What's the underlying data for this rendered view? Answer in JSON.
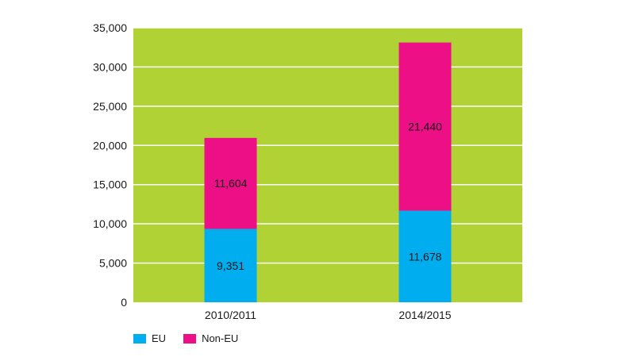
{
  "chart_data": {
    "type": "bar",
    "stacked": true,
    "categories": [
      "2010/2011",
      "2014/2015"
    ],
    "series": [
      {
        "name": "EU",
        "values": [
          9351,
          11678
        ],
        "labels": [
          "9,351",
          "11,678"
        ],
        "color": "#00aeef"
      },
      {
        "name": "Non-EU",
        "values": [
          11604,
          21440
        ],
        "labels": [
          "11,604",
          "21,440"
        ],
        "color": "#ec0f86"
      }
    ],
    "y_ticks": [
      0,
      5000,
      10000,
      15000,
      20000,
      25000,
      30000,
      35000
    ],
    "y_tick_labels": [
      "0",
      "5,000",
      "10,000",
      "15,000",
      "20,000",
      "25,000",
      "30,000",
      "35,000"
    ],
    "ylim": [
      0,
      35000
    ],
    "grid": true,
    "plot_background": "#b0d235",
    "gridline_color": "#ffffff",
    "legend_position": "bottom-left"
  }
}
